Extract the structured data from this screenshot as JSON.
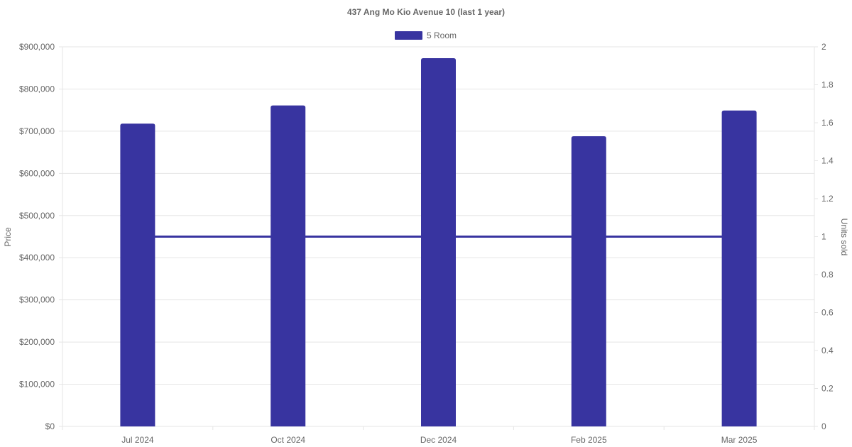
{
  "chart_data": {
    "type": "bar",
    "title": "437 Ang Mo Kio Avenue 10 (last 1 year)",
    "categories": [
      "Jul 2024",
      "Oct 2024",
      "Dec 2024",
      "Feb 2025",
      "Mar 2025"
    ],
    "series": [
      {
        "name": "5 Room",
        "type": "bar",
        "axis": "left",
        "values": [
          718000,
          761000,
          873000,
          688000,
          749000
        ],
        "color": "#3834a0"
      },
      {
        "name": "",
        "type": "line",
        "axis": "right",
        "values": [
          1,
          1,
          1,
          1,
          1
        ],
        "color": "#3834a0"
      }
    ],
    "y_left": {
      "label": "Price",
      "range": [
        0,
        900000
      ],
      "ticks": [
        "$0",
        "$100,000",
        "$200,000",
        "$300,000",
        "$400,000",
        "$500,000",
        "$600,000",
        "$700,000",
        "$800,000",
        "$900,000"
      ]
    },
    "y_right": {
      "label": "Units sold",
      "range": [
        0,
        2
      ],
      "ticks": [
        "0",
        "0.2",
        "0.4",
        "0.6",
        "0.8",
        "1",
        "1.2",
        "1.4",
        "1.6",
        "1.8",
        "2"
      ]
    },
    "legend": {
      "position": "top",
      "entries": [
        "5 Room"
      ]
    },
    "grid": true,
    "colors": {
      "bar": "#3834a0",
      "grid": "#e5e5e5",
      "text": "#666666"
    }
  }
}
